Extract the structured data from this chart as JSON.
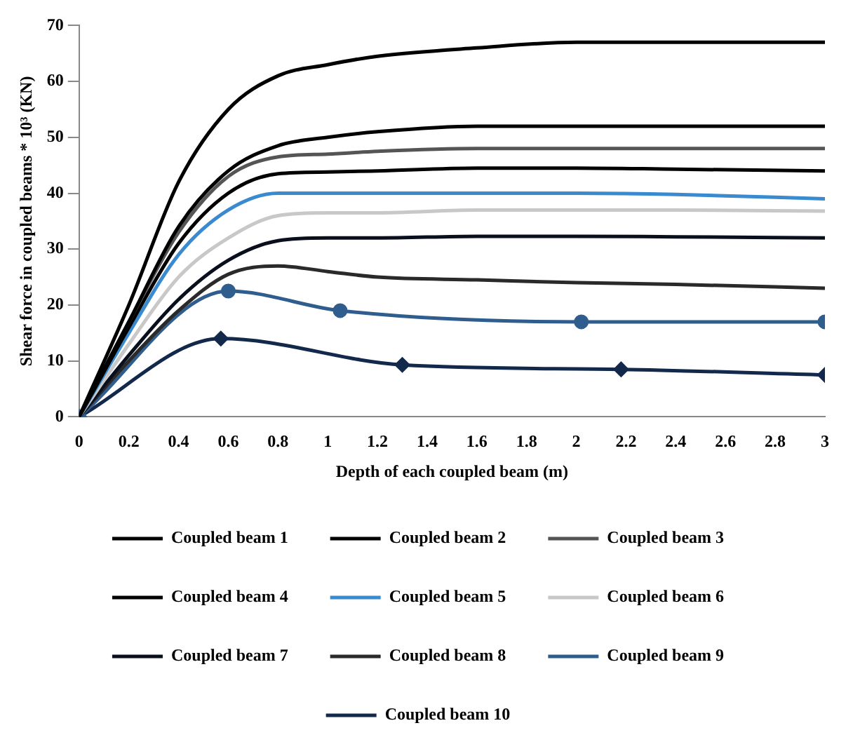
{
  "chart_data": {
    "type": "line",
    "xlabel": "Depth of each coupled beam (m)",
    "ylabel": "Shear force in coupled beams * 10³ (KN)",
    "xlim": [
      0,
      3
    ],
    "xticks": [
      0,
      0.2,
      0.4,
      0.6,
      0.8,
      1,
      1.2,
      1.4,
      1.6,
      1.8,
      2,
      2.2,
      2.4,
      2.6,
      2.8,
      3
    ],
    "ylim": [
      0,
      70
    ],
    "yticks": [
      0,
      10,
      20,
      30,
      40,
      50,
      60,
      70
    ],
    "grid": false,
    "legend": "bottom",
    "marker": "none",
    "x": [
      0,
      0.2,
      0.4,
      0.6,
      0.8,
      1,
      1.2,
      1.6,
      2,
      2.4,
      3
    ],
    "series": [
      {
        "name": "Coupled beam 1",
        "color": "#000000",
        "values": [
          0,
          20,
          42,
          55,
          61,
          63,
          64.5,
          66,
          67,
          67,
          67
        ]
      },
      {
        "name": "Coupled beam 2",
        "color": "#000000",
        "values": [
          0,
          17,
          34,
          44,
          48.5,
          50,
          51,
          52,
          52,
          52,
          52
        ]
      },
      {
        "name": "Coupled beam 3",
        "color": "#555555",
        "values": [
          0,
          17,
          33,
          43,
          46.5,
          47,
          47.5,
          48,
          48,
          48,
          48
        ]
      },
      {
        "name": "Coupled beam 4",
        "color": "#000000",
        "values": [
          0,
          16,
          31,
          40,
          43.5,
          43.8,
          44,
          44.5,
          44.5,
          44.3,
          44
        ]
      },
      {
        "name": "Coupled beam 5",
        "color": "#3a8ad0",
        "values": [
          0,
          15,
          29,
          37,
          40,
          40,
          40,
          40,
          40,
          39.8,
          39
        ]
      },
      {
        "name": "Coupled beam 6",
        "color": "#c8c8c8",
        "values": [
          0,
          13,
          25,
          32,
          36,
          36.5,
          36.5,
          37,
          37,
          37,
          36.8
        ]
      },
      {
        "name": "Coupled beam 7",
        "color": "#0a0f1e",
        "values": [
          0,
          11,
          21,
          28,
          31.5,
          32,
          32,
          32.3,
          32.3,
          32.2,
          32
        ]
      },
      {
        "name": "Coupled beam 8",
        "color": "#2a2a2a",
        "values": [
          0,
          10,
          19,
          25.5,
          27,
          26,
          25,
          24.5,
          24,
          23.7,
          23
        ]
      },
      {
        "name": "Coupled beam 9",
        "color": "#2e5d8e",
        "marker": "circle",
        "x": [
          0,
          0.6,
          1.05,
          2.02,
          3
        ],
        "values": [
          0,
          22.5,
          19,
          17,
          17
        ]
      },
      {
        "name": "Coupled beam 10",
        "color": "#13294b",
        "marker": "diamond",
        "x": [
          0,
          0.57,
          1.3,
          2.18,
          3
        ],
        "values": [
          0,
          14,
          9.3,
          8.5,
          7.5
        ]
      }
    ]
  }
}
